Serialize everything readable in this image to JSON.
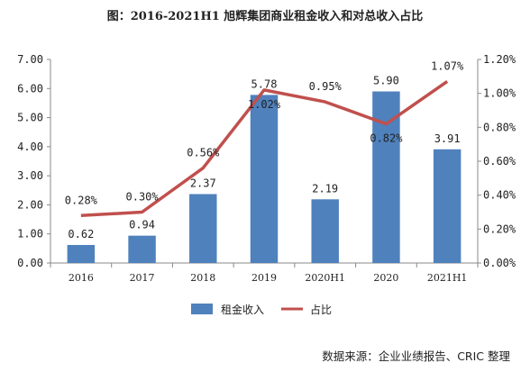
{
  "chart_data": {
    "type": "bar",
    "title": "图：2016-2021H1 旭辉集团商业租金收入和对总收入占比",
    "categories": [
      "2016",
      "2017",
      "2018",
      "2019",
      "2020H1",
      "2020",
      "2021H1"
    ],
    "series": [
      {
        "name": "租金收入",
        "type": "bar",
        "axis": "left",
        "color": "#4F81BD",
        "values": [
          0.62,
          0.94,
          2.37,
          5.78,
          2.19,
          5.9,
          3.91
        ],
        "labels": [
          "0.62",
          "0.94",
          "2.37",
          "5.78",
          "2.19",
          "5.90",
          "3.91"
        ]
      },
      {
        "name": "占比",
        "type": "line",
        "axis": "right",
        "color": "#C0504D",
        "values": [
          0.28,
          0.3,
          0.56,
          1.02,
          0.95,
          0.82,
          1.07
        ],
        "labels": [
          "0.28%",
          "0.30%",
          "0.56%",
          "1.02%",
          "0.95%",
          "0.82%",
          "1.07%"
        ]
      }
    ],
    "ylim_left": [
      0,
      7
    ],
    "ylim_right": [
      0,
      1.2
    ],
    "yticks_left": [
      "0.00",
      "1.00",
      "2.00",
      "3.00",
      "4.00",
      "5.00",
      "6.00",
      "7.00"
    ],
    "yticks_right": [
      "0.00%",
      "0.20%",
      "0.40%",
      "0.60%",
      "0.80%",
      "1.00%",
      "1.20%"
    ],
    "grid": false,
    "legend_position": "bottom"
  },
  "source": "数据来源：企业业绩报告、CRIC 整理"
}
